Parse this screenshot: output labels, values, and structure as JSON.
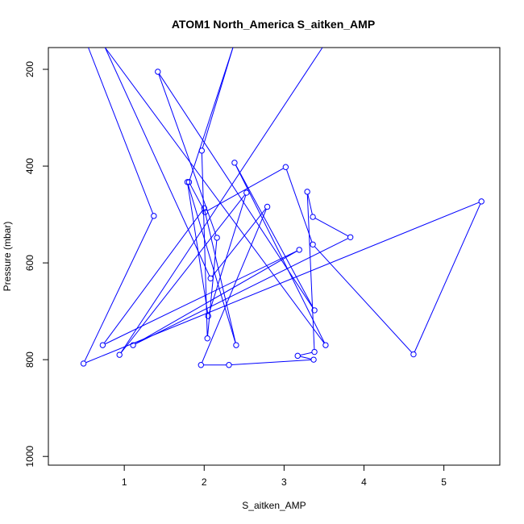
{
  "chart_data": {
    "type": "line",
    "title": "ATOM1 North_America S_aitken_AMP",
    "xlabel": "S_aitken_AMP",
    "ylabel": "Pressure (mbar)",
    "xlim": [
      0.05,
      5.7
    ],
    "ylim": [
      1018,
      155
    ],
    "y_reversed": true,
    "xticks": [
      1,
      2,
      3,
      4,
      5
    ],
    "yticks": [
      200,
      400,
      600,
      800,
      1000
    ],
    "grid": false,
    "legend": "none",
    "series": [
      {
        "color": "#0000ff",
        "marker": "open-circle",
        "points": [
          [
            0.55,
            155
          ],
          [
            1.37,
            503
          ],
          [
            0.49,
            808
          ],
          [
            5.47,
            473
          ],
          [
            4.62,
            789
          ],
          [
            3.36,
            562
          ],
          [
            3.02,
            402
          ],
          [
            2.01,
            495
          ],
          [
            1.81,
            433
          ],
          [
            2.36,
            155
          ],
          [
            1.97,
            368
          ],
          [
            2.04,
            756
          ],
          [
            2.16,
            548
          ],
          [
            1.42,
            205
          ],
          [
            3.38,
            698
          ],
          [
            2.38,
            393
          ],
          [
            3.52,
            770
          ],
          [
            0.76,
            155
          ],
          [
            2.08,
            632
          ],
          [
            2.79,
            484
          ],
          [
            1.96,
            811
          ],
          [
            2.31,
            811
          ],
          [
            3.37,
            800
          ],
          [
            3.17,
            792
          ],
          [
            3.38,
            784
          ],
          [
            3.29,
            453
          ],
          [
            3.36,
            505
          ],
          [
            3.83,
            547
          ],
          [
            1.11,
            770
          ],
          [
            3.19,
            573
          ],
          [
            0.73,
            770
          ],
          [
            2.0,
            487
          ],
          [
            2.4,
            770
          ],
          [
            1.79,
            433
          ],
          [
            2.05,
            710
          ],
          [
            2.53,
            455
          ],
          [
            0.94,
            790
          ],
          [
            3.48,
            155
          ]
        ]
      }
    ]
  }
}
